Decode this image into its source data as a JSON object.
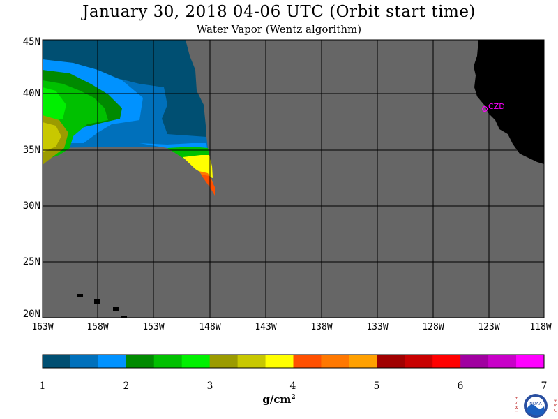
{
  "header": {
    "title": "January 30, 2018  04-06 UTC  (Orbit start time)",
    "subtitle": "Water Vapor (Wentz algorithm)"
  },
  "map": {
    "lat_labels": [
      "45N",
      "40N",
      "35N",
      "30N",
      "25N",
      "20N"
    ],
    "lon_labels": [
      "163W",
      "158W",
      "153W",
      "148W",
      "143W",
      "138W",
      "133W",
      "128W",
      "123W",
      "118W"
    ],
    "station_label": "CZD",
    "station_color": "#ff00ff",
    "nodata_color": "#666666",
    "land_color": "#000000"
  },
  "colorbar": {
    "tick_labels": [
      "1",
      "2",
      "3",
      "4",
      "5",
      "6",
      "7"
    ],
    "units_base": "g/cm",
    "units_exp": "2",
    "colors": [
      "#004f72",
      "#0070bb",
      "#0092ff",
      "#008a00",
      "#00c000",
      "#00f000",
      "#9b9b00",
      "#c8c800",
      "#ffff00",
      "#ff5000",
      "#ff7800",
      "#ffa000",
      "#a00000",
      "#c80000",
      "#ff0000",
      "#a000a0",
      "#c800c8",
      "#ff00ff"
    ]
  },
  "logo": {
    "left_letters": "ESRL",
    "right_letters": "PSD",
    "center_text": "NOAA"
  }
}
